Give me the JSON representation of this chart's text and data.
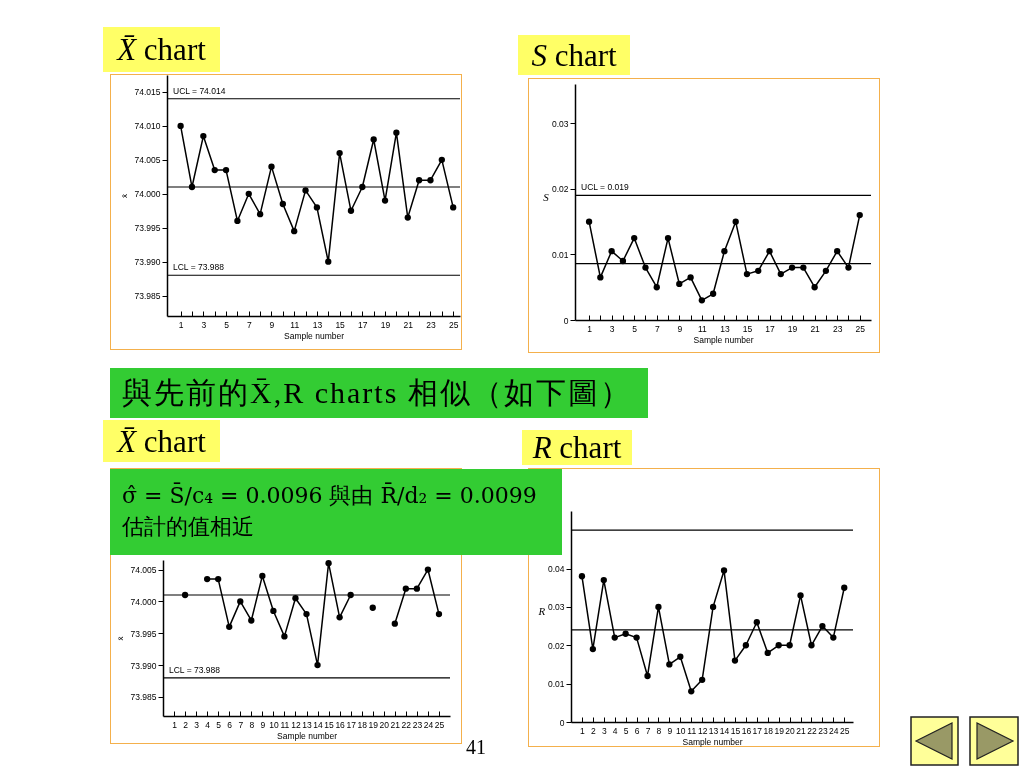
{
  "chart_data": [
    {
      "type": "line",
      "title": "X̄ chart",
      "xlabel": "Sample number",
      "ylabel": "x̄",
      "x": [
        1,
        2,
        3,
        4,
        5,
        6,
        7,
        8,
        9,
        10,
        11,
        12,
        13,
        14,
        15,
        16,
        17,
        18,
        19,
        20,
        21,
        22,
        23,
        24,
        25
      ],
      "series": [
        {
          "color": "#000000",
          "values": [
            74.01,
            74.001,
            74.0085,
            74.0035,
            74.0035,
            73.996,
            74.0,
            73.997,
            74.004,
            73.9985,
            73.9945,
            74.0005,
            73.998,
            73.99,
            74.006,
            73.9975,
            74.001,
            74.008,
            73.999,
            74.009,
            73.9965,
            74.002,
            74.002,
            74.005,
            73.998
          ]
        }
      ],
      "xlim": [
        -0.2,
        25.6
      ],
      "ylim": [
        73.982,
        74.0175
      ],
      "xticks": [
        1,
        {
          "value": 2,
          "label": null
        },
        3,
        {
          "value": 4,
          "label": null
        },
        5,
        {
          "value": 6,
          "label": null
        },
        7,
        {
          "value": 8,
          "label": null
        },
        9,
        {
          "value": 10,
          "label": null
        },
        11,
        {
          "value": 12,
          "label": null
        },
        13,
        {
          "value": 14,
          "label": null
        },
        15,
        {
          "value": 16,
          "label": null
        },
        17,
        {
          "value": 18,
          "label": null
        },
        19,
        {
          "value": 20,
          "label": null
        },
        21,
        {
          "value": 22,
          "label": null
        },
        23,
        {
          "value": 24,
          "label": null
        },
        25
      ],
      "yticks": [
        73.985,
        {
          "value": 73.99,
          "label": "73.990"
        },
        73.995,
        {
          "value": 74,
          "label": "74.000"
        },
        74.005,
        {
          "value": 74.01,
          "label": "74.010"
        },
        74.015
      ],
      "ref_lines": [
        {
          "axis": "y",
          "value": 74.014,
          "label": "UCL = 74.014"
        },
        {
          "axis": "y",
          "value": 74.001
        },
        {
          "axis": "y",
          "value": 73.988,
          "label": "LCL = 73.988"
        }
      ],
      "marker": "circle"
    },
    {
      "type": "line",
      "title": "S chart",
      "xlabel": "Sample number",
      "ylabel": "S",
      "x": [
        1,
        2,
        3,
        4,
        5,
        6,
        7,
        8,
        9,
        10,
        11,
        12,
        13,
        14,
        15,
        16,
        17,
        18,
        19,
        20,
        21,
        22,
        23,
        24,
        25
      ],
      "series": [
        {
          "color": "#000000",
          "values": [
            0.015,
            0.0065,
            0.0105,
            0.009,
            0.0125,
            0.008,
            0.005,
            0.0125,
            0.0055,
            0.0065,
            0.003,
            0.004,
            0.0105,
            0.015,
            0.007,
            0.0075,
            0.0105,
            0.007,
            0.008,
            0.008,
            0.005,
            0.0075,
            0.0105,
            0.008,
            0.016
          ]
        }
      ],
      "xlim": [
        -0.25,
        26
      ],
      "ylim": [
        0,
        0.036
      ],
      "xticks": [
        1,
        {
          "value": 2,
          "label": null
        },
        3,
        {
          "value": 4,
          "label": null
        },
        5,
        {
          "value": 6,
          "label": null
        },
        7,
        {
          "value": 8,
          "label": null
        },
        9,
        {
          "value": 10,
          "label": null
        },
        11,
        {
          "value": 12,
          "label": null
        },
        13,
        {
          "value": 14,
          "label": null
        },
        15,
        {
          "value": 16,
          "label": null
        },
        17,
        {
          "value": 18,
          "label": null
        },
        19,
        {
          "value": 20,
          "label": null
        },
        21,
        {
          "value": 22,
          "label": null
        },
        23,
        {
          "value": 24,
          "label": null
        },
        25
      ],
      "yticks": [
        0,
        0.01,
        0.02,
        0.03
      ],
      "ref_lines": [
        {
          "axis": "y",
          "value": 0.019,
          "label": "UCL = 0.019"
        },
        {
          "axis": "y",
          "value": 0.0086
        }
      ],
      "marker": "circle"
    },
    {
      "type": "line",
      "title": "X̄ chart",
      "xlabel": "Sample number",
      "ylabel": "x̄",
      "x": [
        2,
        3,
        4,
        5,
        6,
        7,
        8,
        9,
        10,
        11,
        12,
        13,
        14,
        15,
        16,
        17,
        18,
        19,
        20,
        21,
        22,
        23,
        24,
        25
      ],
      "series": [
        {
          "color": "#000000",
          "values": [
            74.001,
            null,
            74.0035,
            74.0035,
            73.996,
            74.0,
            73.997,
            74.004,
            73.9985,
            73.9945,
            74.0005,
            73.998,
            73.99,
            74.006,
            73.9975,
            74.001,
            null,
            73.999,
            null,
            73.9965,
            74.002,
            74.002,
            74.005,
            73.998
          ]
        }
      ],
      "xlim": [
        0,
        26
      ],
      "ylim": [
        73.982,
        74.0065
      ],
      "xticks": [
        1,
        2,
        3,
        4,
        5,
        6,
        7,
        8,
        9,
        10,
        11,
        12,
        13,
        14,
        15,
        16,
        17,
        18,
        19,
        20,
        21,
        22,
        23,
        24,
        25
      ],
      "yticks": [
        73.985,
        {
          "value": 73.99,
          "label": "73.990"
        },
        73.995,
        {
          "value": 74,
          "label": "74.000"
        },
        74.005
      ],
      "ref_lines": [
        {
          "axis": "y",
          "value": 74.001
        },
        {
          "axis": "y",
          "value": 73.988,
          "label": "LCL = 73.988"
        }
      ],
      "marker": "circle",
      "annotations": [
        "與先前的X̄,R charts 相似（如下圖）",
        "σ̂ = S̄/c₄ = 0.0096 與由 R̄/d₂ = 0.0099 估計的值相近"
      ]
    },
    {
      "type": "line",
      "title": "R chart",
      "xlabel": "Sample number",
      "ylabel": "R",
      "x": [
        1,
        2,
        3,
        4,
        5,
        6,
        7,
        8,
        9,
        10,
        11,
        12,
        13,
        14,
        15,
        16,
        17,
        18,
        19,
        20,
        21,
        22,
        23,
        24,
        25
      ],
      "series": [
        {
          "color": "#000000",
          "values": [
            0.038,
            0.019,
            0.037,
            0.022,
            0.023,
            0.022,
            0.012,
            0.03,
            0.015,
            0.017,
            0.008,
            0.011,
            0.03,
            0.0395,
            0.016,
            0.02,
            0.026,
            0.018,
            0.02,
            0.02,
            0.033,
            0.02,
            0.025,
            0.022,
            0.035
          ]
        }
      ],
      "xlim": [
        0,
        25.8
      ],
      "ylim": [
        0,
        0.055
      ],
      "xticks": [
        1,
        2,
        3,
        4,
        5,
        6,
        7,
        8,
        9,
        10,
        11,
        12,
        13,
        14,
        15,
        16,
        17,
        18,
        19,
        20,
        21,
        22,
        23,
        24,
        25
      ],
      "yticks": [
        0,
        0.01,
        0.02,
        0.03,
        0.04
      ],
      "ref_lines": [
        {
          "axis": "y",
          "value": 0.05
        },
        {
          "axis": "y",
          "value": 0.024
        }
      ],
      "marker": "circle",
      "annotations": [
        "41"
      ]
    }
  ]
}
